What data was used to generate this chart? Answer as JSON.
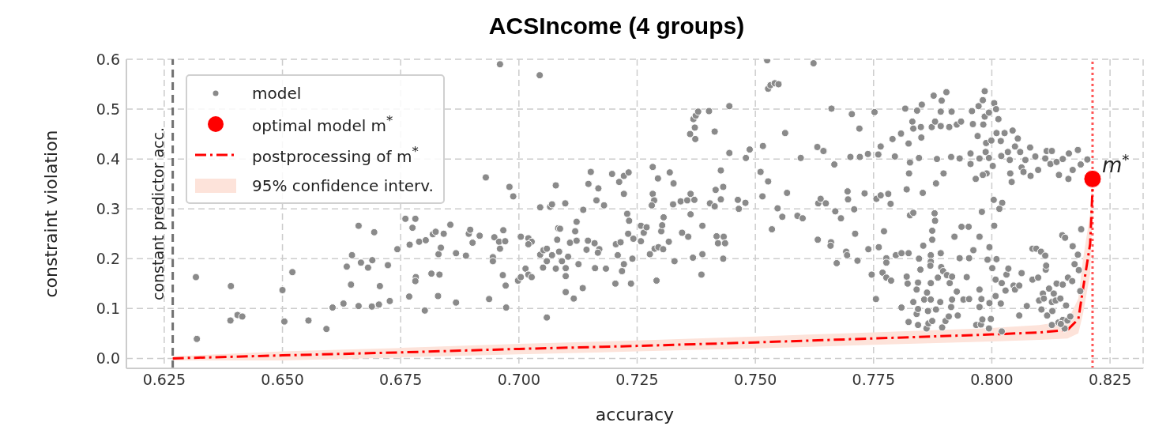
{
  "chart_data": {
    "type": "scatter",
    "title": "ACSIncome (4 groups)",
    "xlabel": "accuracy",
    "ylabel": "constraint violation",
    "xlim": [
      0.617,
      0.832
    ],
    "ylim": [
      -0.02,
      0.6
    ],
    "xticks": [
      0.625,
      {
        "value": 0.65,
        "label": "0.650"
      },
      0.675,
      {
        "value": 0.7,
        "label": "0.700"
      },
      0.725,
      {
        "value": 0.75,
        "label": "0.750"
      },
      0.775,
      {
        "value": 0.8,
        "label": "0.800"
      },
      0.825
    ],
    "yticks": [
      {
        "value": 0,
        "label": "0.0"
      },
      0.1,
      0.2,
      0.3,
      0.4,
      0.5,
      0.6
    ],
    "grid": true,
    "legend": "top left",
    "series": [
      {
        "name": "model",
        "type": "scatter",
        "color": "#8a8a8a",
        "marker": "circle",
        "x": [
          0.6317,
          0.6319,
          0.6391,
          0.639,
          0.6405,
          0.6415,
          0.65,
          0.6504,
          0.6521,
          0.6555,
          0.6593,
          0.6606,
          0.6629,
          0.6636,
          0.6645,
          0.6647,
          0.6661,
          0.6661,
          0.6666,
          0.6681,
          0.669,
          0.6694,
          0.6689,
          0.6704,
          0.6706,
          0.6723,
          0.6727,
          0.6743,
          0.676,
          0.6781,
          0.6775,
          0.6769,
          0.6768,
          0.6782,
          0.6781,
          0.6789,
          0.6801,
          0.6803,
          0.6815,
          0.6818,
          0.6824,
          0.6832,
          0.6829,
          0.683,
          0.6835,
          0.6841,
          0.6855,
          0.6867,
          0.6867,
          0.6888,
          0.6894,
          0.6897,
          0.6902,
          0.6917,
          0.6937,
          0.6945,
          0.6945,
          0.6948,
          0.6958,
          0.696,
          0.6967,
          0.6971,
          0.6966,
          0.6972,
          0.6973,
          0.696,
          0.693,
          0.698,
          0.6988,
          0.7044,
          0.6998,
          0.7004,
          0.7014,
          0.702,
          0.7027,
          0.7004,
          0.702,
          0.7027,
          0.702,
          0.7045,
          0.7045,
          0.7059,
          0.7051,
          0.7059,
          0.7052,
          0.7059,
          0.7066,
          0.707,
          0.7078,
          0.7078,
          0.7081,
          0.7085,
          0.7083,
          0.7087,
          0.707,
          0.7091,
          0.7099,
          0.7099,
          0.7099,
          0.7104,
          0.7098,
          0.7108,
          0.7116,
          0.7119,
          0.7122,
          0.7122,
          0.7126,
          0.7135,
          0.7136,
          0.7143,
          0.7146,
          0.7147,
          0.7152,
          0.716,
          0.7161,
          0.7164,
          0.7168,
          0.717,
          0.7167,
          0.718,
          0.7184,
          0.7197,
          0.7204,
          0.7205,
          0.7209,
          0.7212,
          0.7215,
          0.7218,
          0.7222,
          0.7222,
          0.7222,
          0.7229,
          0.7232,
          0.7233,
          0.7231,
          0.7237,
          0.724,
          0.7242,
          0.7258,
          0.7258,
          0.7264,
          0.727,
          0.7277,
          0.7283,
          0.7283,
          0.7286,
          0.7281,
          0.7287,
          0.7291,
          0.7294,
          0.7295,
          0.7301,
          0.7303,
          0.7306,
          0.7305,
          0.7317,
          0.7319,
          0.7326,
          0.7327,
          0.7329,
          0.7342,
          0.7345,
          0.7356,
          0.7358,
          0.7363,
          0.7363,
          0.7362,
          0.7368,
          0.7371,
          0.7372,
          0.7373,
          0.7369,
          0.7374,
          0.7379,
          0.7386,
          0.7388,
          0.7388,
          0.7402,
          0.7404,
          0.7414,
          0.7414,
          0.7416,
          0.7418,
          0.7421,
          0.7427,
          0.7427,
          0.7432,
          0.7432,
          0.7433,
          0.7436,
          0.7445,
          0.7445,
          0.7463,
          0.7465,
          0.7479,
          0.748,
          0.7488,
          0.7511,
          0.7516,
          0.7515,
          0.7527,
          0.7525,
          0.7535,
          0.7527,
          0.7532,
          0.7541,
          0.7549,
          0.7547,
          0.7557,
          0.7563,
          0.7567,
          0.7589,
          0.7596,
          0.76,
          0.7623,
          0.7631,
          0.7632,
          0.7633,
          0.7638,
          0.7645,
          0.7649,
          0.7644,
          0.7661,
          0.7704,
          0.772,
          0.7752,
          0.7667,
          0.7701,
          0.7721,
          0.7738,
          0.776,
          0.7765,
          0.779,
          0.7795,
          0.7808,
          0.7817,
          0.7824,
          0.7825,
          0.7827,
          0.7832,
          0.7842,
          0.7846,
          0.7852,
          0.7851,
          0.7834,
          0.785,
          0.7877,
          0.7873,
          0.788,
          0.7894,
          0.7892,
          0.7904,
          0.7892,
          0.7884,
          0.7882,
          0.7898,
          0.791,
          0.7915,
          0.7926,
          0.7935,
          0.7914,
          0.7932,
          0.7955,
          0.7955,
          0.7958,
          0.796,
          0.797,
          0.7972,
          0.7981,
          0.7985,
          0.7982,
          0.7985,
          0.7994,
          0.8005,
          0.8009,
          0.8014,
          0.7988,
          0.7999,
          0.7987,
          0.7974,
          0.7994,
          0.8002,
          0.7989,
          0.7981,
          0.7966,
          0.801,
          0.8019,
          0.8027,
          0.8044,
          0.802,
          0.8034,
          0.8038,
          0.8049,
          0.8055,
          0.806,
          0.8071,
          0.8081,
          0.8063,
          0.8039,
          0.8042,
          0.8067,
          0.8082,
          0.8092,
          0.8098,
          0.8116,
          0.8127,
          0.8113,
          0.8124,
          0.8137,
          0.8142,
          0.815,
          0.8163,
          0.8162,
          0.8182,
          0.8188,
          0.8202,
          0.8171,
          0.7695,
          0.7696,
          0.7669,
          0.7681,
          0.7709,
          0.7731,
          0.7756,
          0.7765,
          0.7781,
          0.7786,
          0.782,
          0.7854,
          0.7827,
          0.7834,
          0.7879,
          0.788,
          0.8004,
          0.8022,
          0.8016,
          0.7979,
          0.7711,
          0.7772,
          0.766,
          0.7659,
          0.7692,
          0.7694,
          0.7672,
          0.7716,
          0.7739,
          0.7761,
          0.7777,
          0.7777,
          0.7797,
          0.7809,
          0.7824,
          0.7746,
          0.7769,
          0.7777,
          0.7787,
          0.782,
          0.7822,
          0.7755,
          0.7809,
          0.7824,
          0.7844,
          0.7834,
          0.7841,
          0.7844,
          0.7844,
          0.7841,
          0.7846,
          0.7849,
          0.7855,
          0.7857,
          0.7862,
          0.7863,
          0.7865,
          0.7866,
          0.7871,
          0.7871,
          0.787,
          0.7871,
          0.7874,
          0.7874,
          0.7871,
          0.7874,
          0.7882,
          0.7886,
          0.7892,
          0.7891,
          0.7893,
          0.7895,
          0.7897,
          0.7902,
          0.7905,
          0.7909,
          0.7911,
          0.7914,
          0.7916,
          0.7916,
          0.7921,
          0.7926,
          0.7928,
          0.7932,
          0.7936,
          0.794,
          0.7947,
          0.7951,
          0.7952,
          0.7952,
          0.7961,
          0.7967,
          0.7974,
          0.7974,
          0.7974,
          0.7977,
          0.7978,
          0.798,
          0.7991,
          0.7994,
          0.7995,
          0.7995,
          0.7998,
          0.8001,
          0.8005,
          0.8008,
          0.8008,
          0.801,
          0.8019,
          0.8021,
          0.8021,
          0.8029,
          0.8031,
          0.8035,
          0.8046,
          0.8049,
          0.8058,
          0.8058,
          0.8063,
          0.8074,
          0.8086,
          0.8086,
          0.8094,
          0.8098,
          0.8104,
          0.8113,
          0.8114,
          0.8115,
          0.81,
          0.8105,
          0.8108,
          0.811,
          0.8117,
          0.8121,
          0.8127,
          0.8128,
          0.8131,
          0.8135,
          0.8127,
          0.8137,
          0.8141,
          0.8145,
          0.8149,
          0.8155,
          0.815,
          0.815,
          0.8157,
          0.816,
          0.8161,
          0.8166,
          0.817,
          0.8171,
          0.8175,
          0.8182,
          0.8184,
          0.8189,
          0.8187,
          0.8154,
          0.8146
        ],
        "values": [
          0.163,
          0.039,
          0.145,
          0.076,
          0.087,
          0.084,
          0.137,
          0.074,
          0.173,
          0.076,
          0.059,
          0.102,
          0.11,
          0.184,
          0.148,
          0.207,
          0.266,
          0.105,
          0.192,
          0.182,
          0.197,
          0.253,
          0.104,
          0.108,
          0.145,
          0.187,
          0.115,
          0.219,
          0.28,
          0.28,
          0.262,
          0.228,
          0.124,
          0.163,
          0.155,
          0.234,
          0.096,
          0.237,
          0.17,
          0.249,
          0.254,
          0.168,
          0.125,
          0.209,
          0.222,
          0.25,
          0.268,
          0.211,
          0.112,
          0.206,
          0.25,
          0.258,
          0.232,
          0.246,
          0.119,
          0.203,
          0.195,
          0.243,
          0.234,
          0.22,
          0.257,
          0.235,
          0.167,
          0.146,
          0.102,
          0.59,
          0.363,
          0.344,
          0.325,
          0.568,
          0.156,
          0.163,
          0.18,
          0.168,
          0.163,
          0.244,
          0.241,
          0.234,
          0.229,
          0.303,
          0.208,
          0.082,
          0.182,
          0.195,
          0.217,
          0.22,
          0.304,
          0.309,
          0.347,
          0.18,
          0.238,
          0.214,
          0.261,
          0.26,
          0.207,
          0.195,
          0.133,
          0.165,
          0.181,
          0.204,
          0.311,
          0.232,
          0.12,
          0.255,
          0.236,
          0.274,
          0.189,
          0.141,
          0.298,
          0.218,
          0.236,
          0.35,
          0.374,
          0.231,
          0.181,
          0.317,
          0.341,
          0.219,
          0.212,
          0.307,
          0.18,
          0.37,
          0.15,
          0.229,
          0.207,
          0.354,
          0.233,
          0.175,
          0.366,
          0.189,
          0.33,
          0.29,
          0.373,
          0.276,
          0.25,
          0.15,
          0.2,
          0.24,
          0.266,
          0.235,
          0.252,
          0.263,
          0.209,
          0.384,
          0.33,
          0.317,
          0.307,
          0.22,
          0.156,
          0.361,
          0.223,
          0.255,
          0.267,
          0.283,
          0.219,
          0.234,
          0.373,
          0.309,
          0.351,
          0.195,
          0.315,
          0.252,
          0.317,
          0.244,
          0.33,
          0.289,
          0.45,
          0.202,
          0.318,
          0.463,
          0.44,
          0.48,
          0.487,
          0.495,
          0.168,
          0.266,
          0.209,
          0.496,
          0.311,
          0.455,
          0.305,
          0.338,
          0.245,
          0.231,
          0.377,
          0.319,
          0.344,
          0.2,
          0.244,
          0.231,
          0.412,
          0.506,
          0.318,
          0.3,
          0.312,
          0.402,
          0.419,
          0.374,
          0.426,
          0.325,
          0.355,
          0.598,
          0.259,
          0.541,
          0.548,
          0.552,
          0.55,
          0.301,
          0.284,
          0.452,
          0.332,
          0.286,
          0.402,
          0.281,
          0.592,
          0.424,
          0.238,
          0.311,
          0.32,
          0.416,
          0.311,
          0.416,
          0.501,
          0.49,
          0.461,
          0.494,
          0.389,
          0.404,
          0.404,
          0.41,
          0.409,
          0.425,
          0.44,
          0.405,
          0.451,
          0.501,
          0.431,
          0.371,
          0.393,
          0.475,
          0.497,
          0.402,
          0.509,
          0.443,
          0.461,
          0.464,
          0.527,
          0.464,
          0.475,
          0.517,
          0.495,
          0.534,
          0.466,
          0.4,
          0.351,
          0.371,
          0.464,
          0.495,
          0.469,
          0.475,
          0.404,
          0.401,
          0.411,
          0.39,
          0.496,
          0.47,
          0.446,
          0.506,
          0.518,
          0.536,
          0.469,
          0.485,
          0.493,
          0.512,
          0.5,
          0.48,
          0.432,
          0.437,
          0.414,
          0.401,
          0.402,
          0.386,
          0.371,
          0.368,
          0.36,
          0.452,
          0.436,
          0.452,
          0.457,
          0.406,
          0.414,
          0.398,
          0.425,
          0.441,
          0.414,
          0.398,
          0.423,
          0.383,
          0.371,
          0.354,
          0.374,
          0.366,
          0.405,
          0.378,
          0.416,
          0.416,
          0.401,
          0.39,
          0.394,
          0.368,
          0.4,
          0.411,
          0.36,
          0.418,
          0.389,
          0.399,
          0.378,
          0.335,
          0.319,
          0.295,
          0.281,
          0.299,
          0.331,
          0.32,
          0.327,
          0.33,
          0.31,
          0.339,
          0.332,
          0.287,
          0.292,
          0.291,
          0.276,
          0.318,
          0.312,
          0.3,
          0.294,
          0.25,
          0.255,
          0.233,
          0.226,
          0.214,
          0.207,
          0.191,
          0.196,
          0.219,
          0.223,
          0.201,
          0.192,
          0.207,
          0.211,
          0.211,
          0.168,
          0.172,
          0.162,
          0.156,
          0.164,
          0.15,
          0.119,
          0.102,
          0.073,
          0.067,
          0.113,
          0.089,
          0.099,
          0.152,
          0.138,
          0.2,
          0.178,
          0.226,
          0.118,
          0.06,
          0.132,
          0.095,
          0.07,
          0.207,
          0.194,
          0.186,
          0.151,
          0.238,
          0.256,
          0.118,
          0.075,
          0.098,
          0.162,
          0.211,
          0.113,
          0.183,
          0.062,
          0.175,
          0.075,
          0.167,
          0.084,
          0.151,
          0.103,
          0.164,
          0.118,
          0.244,
          0.134,
          0.086,
          0.201,
          0.264,
          0.118,
          0.163,
          0.264,
          0.119,
          0.201,
          0.217,
          0.067,
          0.244,
          0.138,
          0.103,
          0.068,
          0.119,
          0.078,
          0.198,
          0.06,
          0.223,
          0.111,
          0.079,
          0.181,
          0.266,
          0.158,
          0.125,
          0.199,
          0.11,
          0.054,
          0.151,
          0.136,
          0.168,
          0.18,
          0.146,
          0.138,
          0.146,
          0.086,
          0.171,
          0.105,
          0.22,
          0.158,
          0.22,
          0.162,
          0.214,
          0.206,
          0.178,
          0.186,
          0.116,
          0.098,
          0.13,
          0.12,
          0.086,
          0.14,
          0.113,
          0.095,
          0.13,
          0.116,
          0.067,
          0.15,
          0.072,
          0.12,
          0.247,
          0.242,
          0.148,
          0.077,
          0.106,
          0.076,
          0.162,
          0.084,
          0.155,
          0.225,
          0.189,
          0.208,
          0.177,
          0.259,
          0.135,
          0.06,
          0.069
        ]
      },
      {
        "name": "optimal model m$^{*}$",
        "type": "scatter",
        "color": "#ff0000",
        "marker": "circle",
        "x": [
          0.8213
        ],
        "values": [
          0.36
        ]
      },
      {
        "name": "postprocessing of m$^{*}$",
        "type": "line",
        "color": "#ff0000",
        "line_style": "dashed",
        "x": [
          0.6268,
          0.65,
          0.675,
          0.7,
          0.725,
          0.75,
          0.775,
          0.8,
          0.81,
          0.816,
          0.8183,
          0.8193,
          0.8208,
          0.8213,
          0.8213
        ],
        "values": [
          0,
          0.006,
          0.012,
          0.019,
          0.025,
          0.032,
          0.04,
          0.048,
          0.052,
          0.057,
          0.079,
          0.14,
          0.23,
          0.34,
          0.36
        ],
        "lower": [
          -0.004,
          -0.004,
          0.002,
          0.008,
          0.014,
          0.02,
          0.027,
          0.034,
          0.037,
          0.04,
          0.05,
          0.09,
          0.17,
          0.3,
          0.34
        ],
        "upper": [
          0.004,
          0.014,
          0.021,
          0.029,
          0.036,
          0.044,
          0.052,
          0.061,
          0.067,
          0.075,
          0.12,
          0.2,
          0.29,
          0.37,
          0.37
        ]
      },
      {
        "name": "95% confidence interv.",
        "type": "area",
        "color": "#fde3da"
      }
    ],
    "ref_lines": [
      {
        "axis": "x",
        "value": 0.6268,
        "label": "constant predictor acc.",
        "color": "#707070",
        "line_style": "dashed"
      },
      {
        "axis": "x",
        "value": 0.8213,
        "color": "#ff5555",
        "line_style": "dotted"
      }
    ],
    "annotations": [
      {
        "text": "m$^{*}$",
        "x": 0.8213,
        "y": 0.36
      }
    ]
  }
}
